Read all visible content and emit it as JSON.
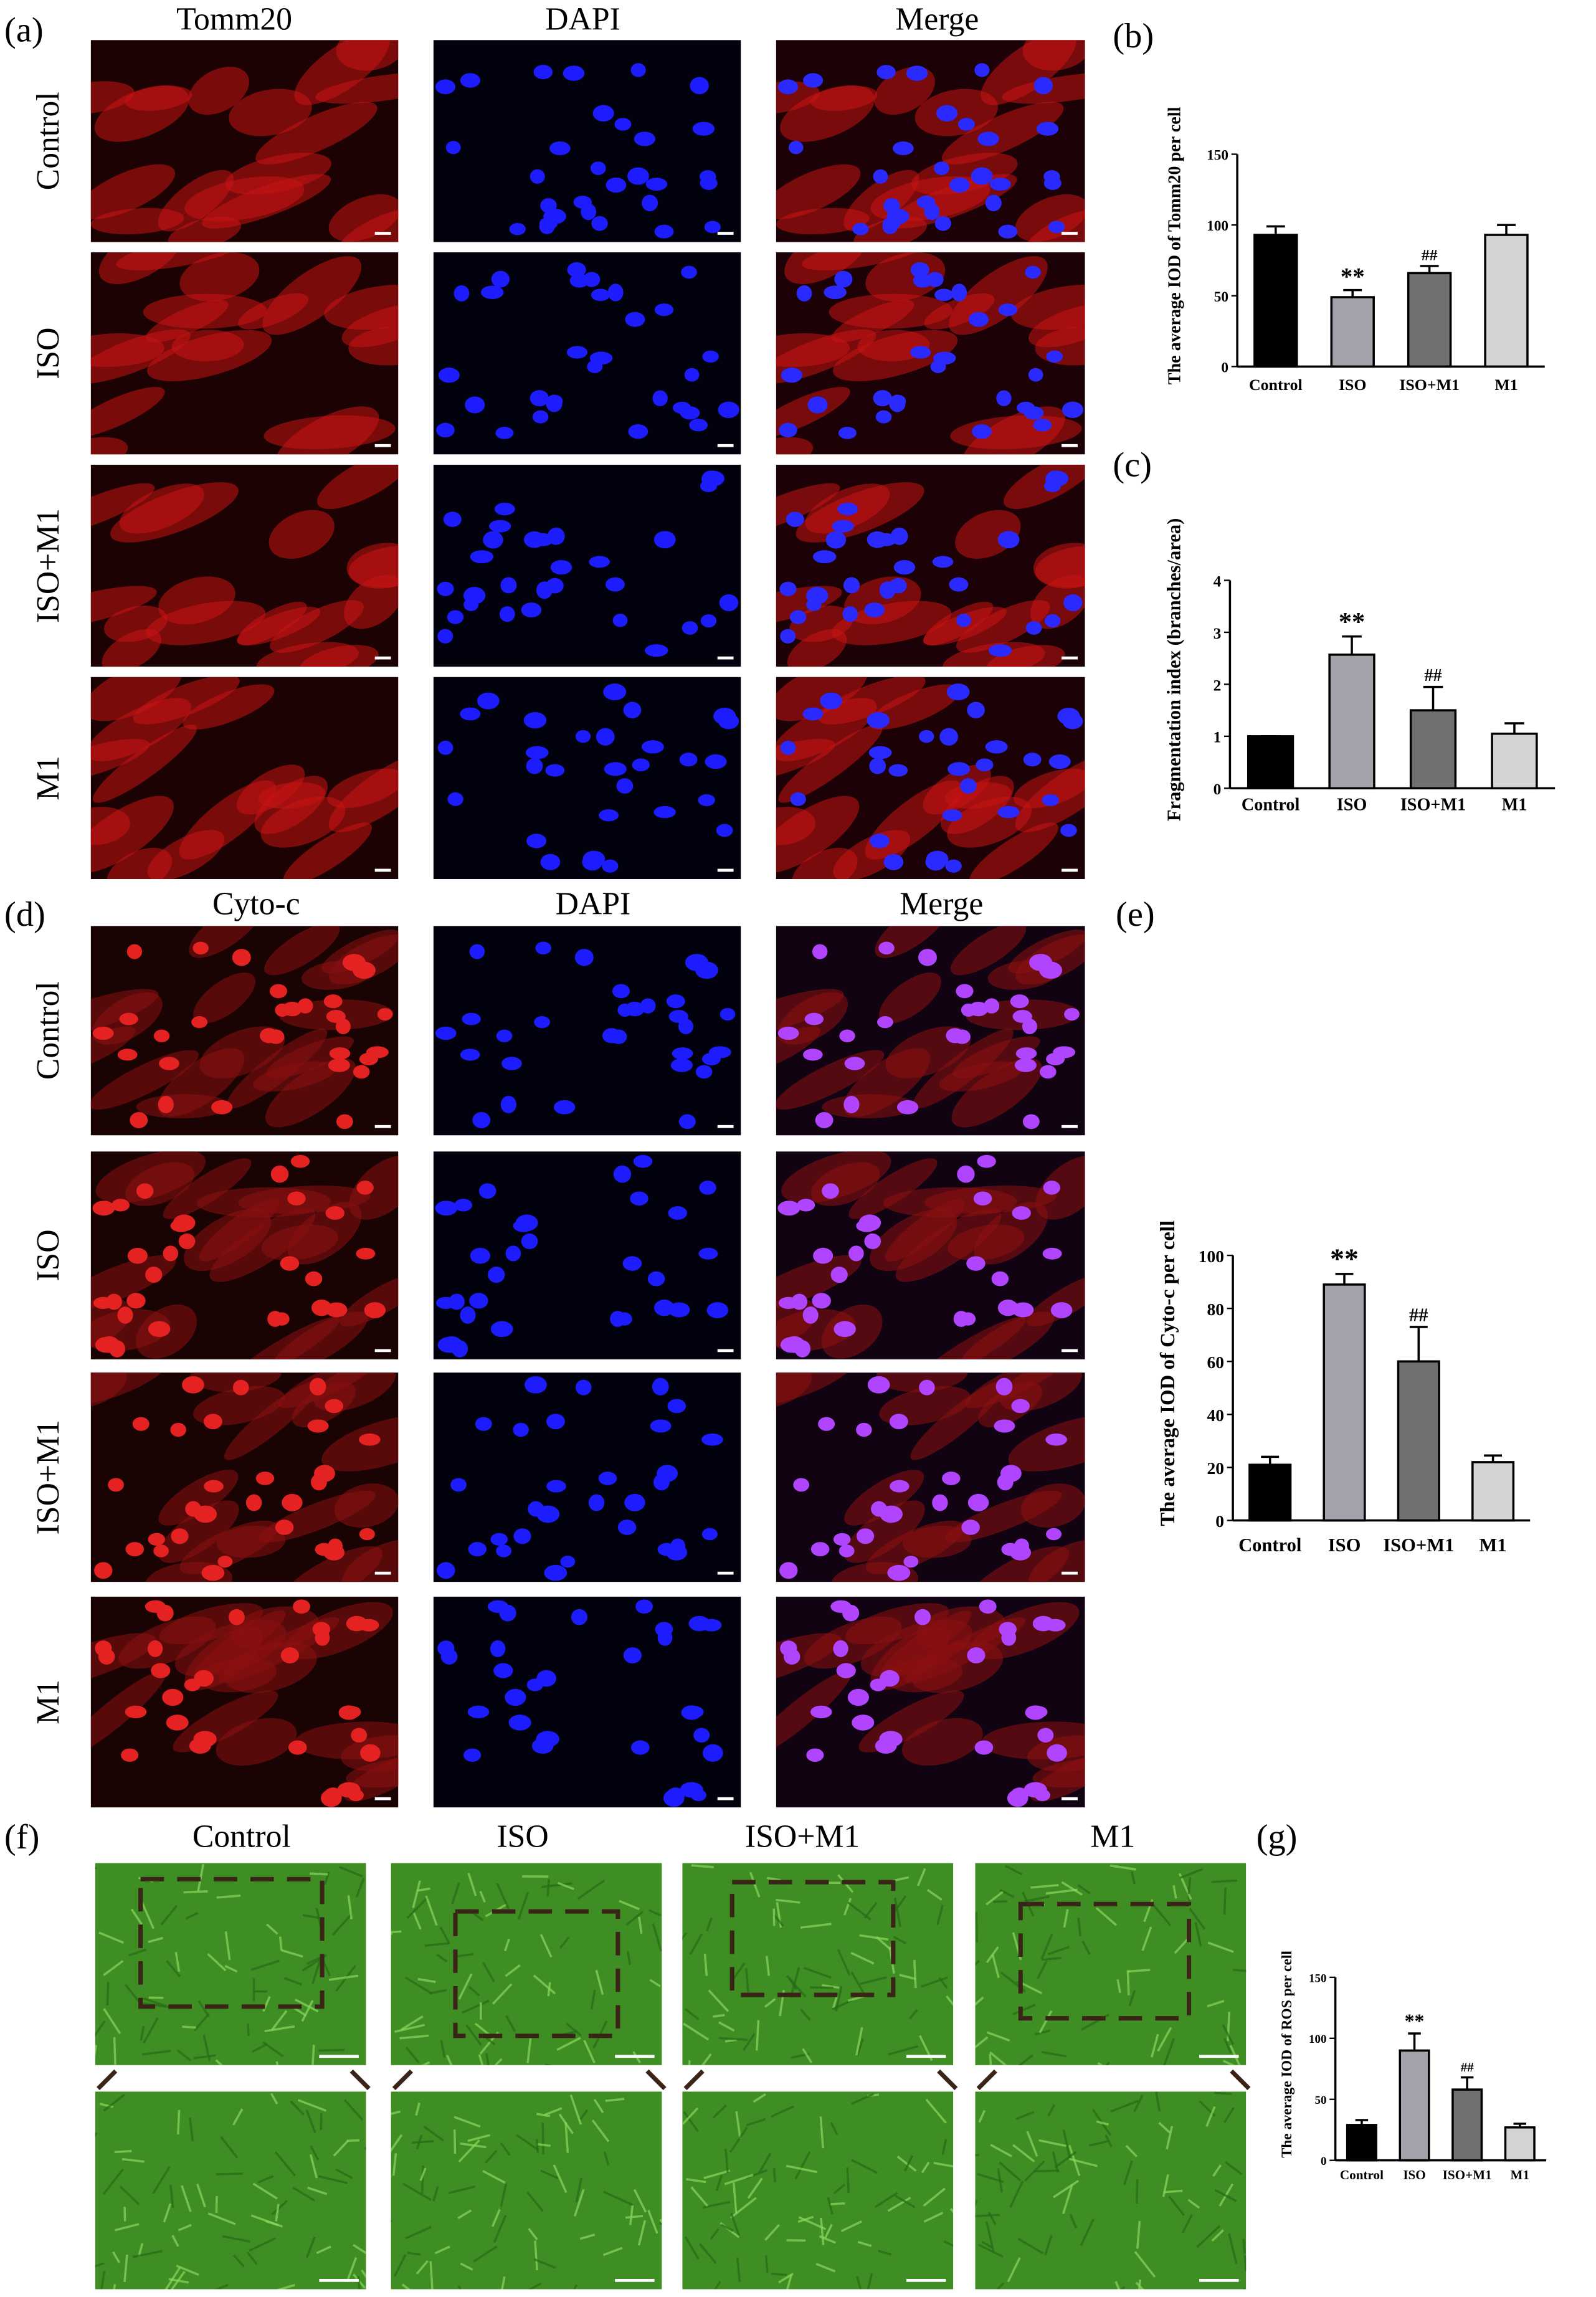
{
  "panel_labels": [
    "(a)",
    "(b)",
    "(c)",
    "(d)",
    "(e)",
    "(f)",
    "(g)"
  ],
  "figure_a": {
    "columns": [
      "Tomm20",
      "DAPI",
      "Merge"
    ],
    "rows": [
      "Control",
      "ISO",
      "ISO+M1",
      "M1"
    ]
  },
  "figure_d": {
    "columns": [
      "Cyto-c",
      "DAPI",
      "Merge"
    ],
    "rows": [
      "Control",
      "ISO",
      "ISO+M1",
      "M1"
    ]
  },
  "figure_f": {
    "columns": [
      "Control",
      "ISO",
      "ISO+M1",
      "M1"
    ]
  },
  "chart_data": [
    {
      "type": "bar",
      "y_label": "The average IOD of Tomm20 per cell",
      "categories": [
        "Control",
        "ISO",
        "ISO+M1",
        "M1"
      ],
      "values": [
        93,
        49,
        66,
        93
      ],
      "errors": [
        6,
        5,
        5,
        7
      ],
      "annotations": [
        null,
        "**",
        "##",
        null
      ],
      "colors": [
        "#000000",
        "#a2a2aa",
        "#707070",
        "#d4d4d4"
      ],
      "ylim": [
        0,
        150
      ],
      "yticks": [
        0,
        50,
        100,
        150
      ]
    },
    {
      "type": "bar",
      "y_label": "Fragmentation index (branches/area)",
      "categories": [
        "Control",
        "ISO",
        "ISO+M1",
        "M1"
      ],
      "values": [
        1,
        2.57,
        1.5,
        1.05
      ],
      "errors": [
        0,
        0.35,
        0.45,
        0.2
      ],
      "annotations": [
        null,
        "**",
        "##",
        null
      ],
      "colors": [
        "#000000",
        "#a2a2aa",
        "#707070",
        "#d4d4d4"
      ],
      "ylim": [
        0,
        4
      ],
      "yticks": [
        0,
        1,
        2,
        3,
        4
      ]
    },
    {
      "type": "bar",
      "y_label": "The average IOD of Cyto-c per cell",
      "categories": [
        "Control",
        "ISO",
        "ISO+M1",
        "M1"
      ],
      "values": [
        21,
        89,
        60,
        22
      ],
      "errors": [
        3,
        4,
        13,
        2.5
      ],
      "annotations": [
        null,
        "**",
        "##",
        null
      ],
      "colors": [
        "#000000",
        "#a2a2aa",
        "#707070",
        "#d4d4d4"
      ],
      "ylim": [
        0,
        100
      ],
      "yticks": [
        0,
        20,
        40,
        60,
        80,
        100
      ]
    },
    {
      "type": "bar",
      "y_label": "The average IOD of ROS per cell",
      "categories": [
        "Control",
        "ISO",
        "ISO+M1",
        "M1"
      ],
      "values": [
        29,
        90,
        58,
        27
      ],
      "errors": [
        4,
        14,
        10,
        3
      ],
      "annotations": [
        null,
        "**",
        "##",
        null
      ],
      "colors": [
        "#000000",
        "#a2a2aa",
        "#707070",
        "#d4d4d4"
      ],
      "ylim": [
        0,
        150
      ],
      "yticks": [
        0,
        50,
        100,
        150
      ]
    }
  ]
}
